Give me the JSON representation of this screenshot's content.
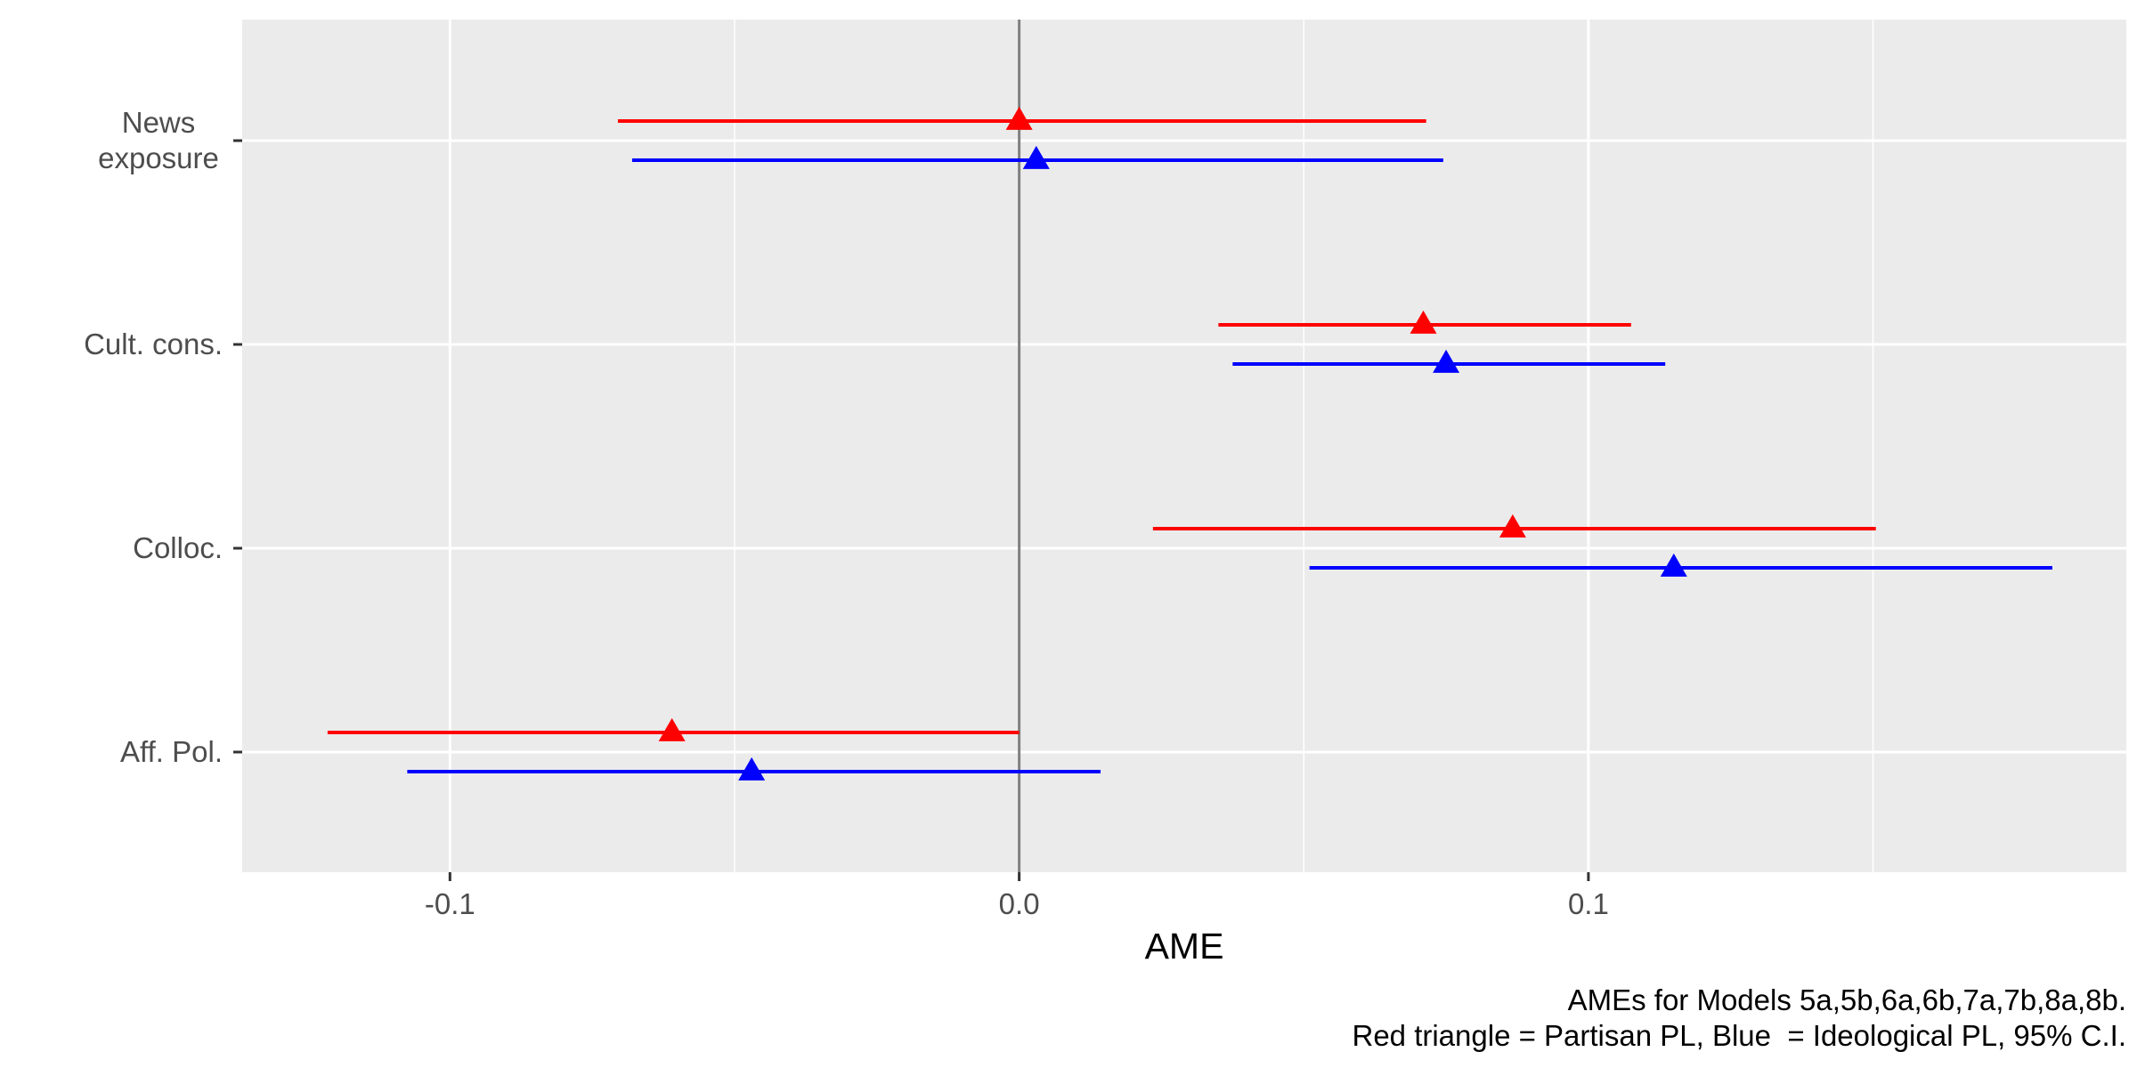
{
  "chart_data": {
    "type": "scatter",
    "subtype": "coefficient-plot",
    "xlabel": "AME",
    "ylabel": "",
    "xlim": [
      -0.1365,
      0.1945
    ],
    "x_ticks": [
      {
        "value": -0.1,
        "label": "-0.1"
      },
      {
        "value": 0.0,
        "label": "0.0"
      },
      {
        "value": 0.1,
        "label": "0.1"
      }
    ],
    "categories": [
      {
        "lines": [
          "News",
          "exposure"
        ]
      },
      {
        "lines": [
          "Cult. cons."
        ]
      },
      {
        "lines": [
          "Colloc."
        ]
      },
      {
        "lines": [
          "Aff. Pol."
        ]
      }
    ],
    "reference_line": 0.0,
    "series": [
      {
        "color": "#ff0000",
        "marker": "triangle",
        "points": [
          {
            "estimate": 0.0,
            "lower": -0.0705,
            "upper": 0.0715
          },
          {
            "estimate": 0.071,
            "lower": 0.035,
            "upper": 0.1075
          },
          {
            "estimate": 0.0867,
            "lower": 0.0235,
            "upper": 0.1505
          },
          {
            "estimate": -0.061,
            "lower": -0.1215,
            "upper": 0.0
          }
        ]
      },
      {
        "color": "#0000ff",
        "marker": "triangle",
        "points": [
          {
            "estimate": 0.003,
            "lower": -0.068,
            "upper": 0.0745
          },
          {
            "estimate": 0.075,
            "lower": 0.0375,
            "upper": 0.1135
          },
          {
            "estimate": 0.115,
            "lower": 0.051,
            "upper": 0.1815
          },
          {
            "estimate": -0.047,
            "lower": -0.1075,
            "upper": 0.0143
          }
        ]
      }
    ],
    "grid": true,
    "legend": "none",
    "caption": [
      "AMEs for Models 5a,5b,6a,6b,7a,7b,8a,8b.",
      "Red triangle = Partisan PL, Blue  = Ideological PL, 95% C.I."
    ]
  }
}
